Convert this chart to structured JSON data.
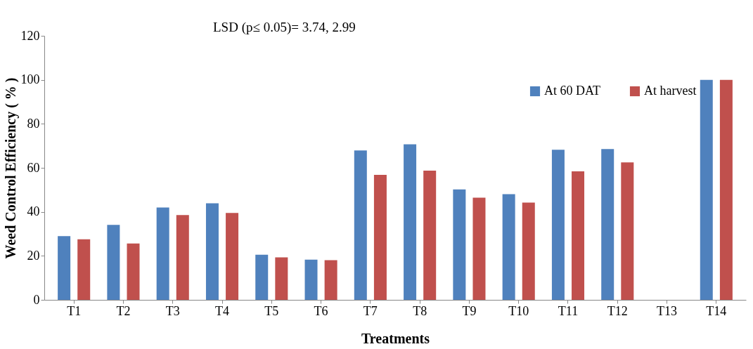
{
  "chart_data": {
    "type": "bar",
    "xlabel": "Treatments",
    "ylabel": "Weed Control Efficiency ( % )",
    "categories": [
      "T1",
      "T2",
      "T3",
      "T4",
      "T5",
      "T6",
      "T7",
      "T8",
      "T9",
      "T10",
      "T11",
      "T12",
      "T13",
      "T14"
    ],
    "series": [
      {
        "name": "At 60 DAT",
        "color": "#4f81bd",
        "values": [
          29.0,
          34.1,
          42.0,
          43.9,
          20.5,
          18.3,
          67.9,
          70.7,
          50.2,
          48.0,
          68.2,
          68.5,
          0,
          100
        ]
      },
      {
        "name": "At harvest",
        "color": "#c0504d",
        "values": [
          27.5,
          25.6,
          38.5,
          39.5,
          19.3,
          18.0,
          56.8,
          58.7,
          46.4,
          44.2,
          58.4,
          62.5,
          0,
          100
        ]
      }
    ],
    "ylim": [
      0,
      120
    ],
    "yticks": [
      0,
      20,
      40,
      60,
      80,
      100,
      120
    ],
    "grid": false,
    "legend": "top right",
    "annotations": [
      "LSD (p≤ 0.05)= 3.74, 2.99"
    ]
  }
}
